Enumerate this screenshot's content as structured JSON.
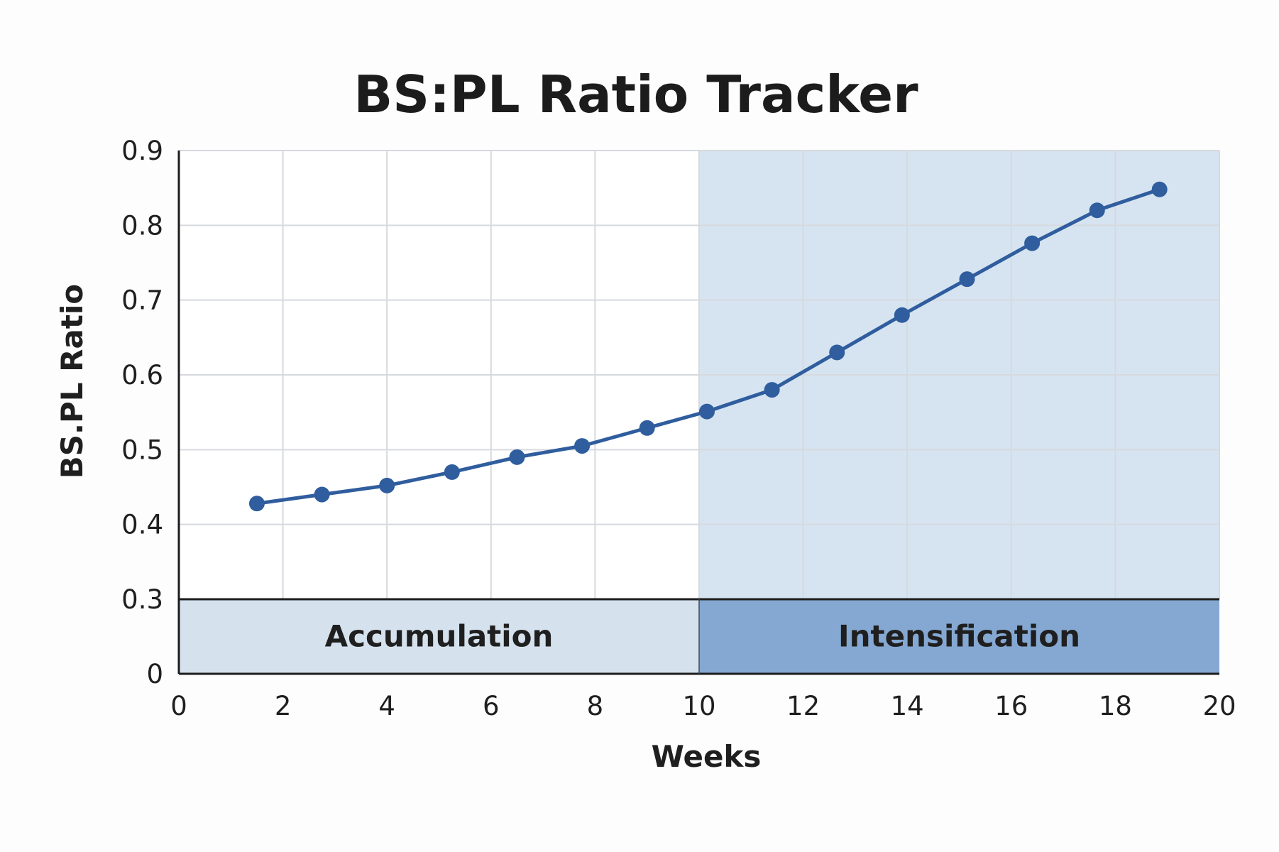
{
  "chart_data": {
    "type": "line",
    "title": "BS:PL Ratio Tracker",
    "xlabel": "Weeks",
    "ylabel": "BS.PL Ratio",
    "xlim": [
      0,
      20
    ],
    "ylim": [
      0,
      0.9
    ],
    "xticks": [
      0,
      2,
      4,
      6,
      8,
      10,
      12,
      14,
      16,
      18,
      20
    ],
    "yticks": [
      0,
      0.3,
      0.4,
      0.5,
      0.6,
      0.7,
      0.8,
      0.9
    ],
    "grid": true,
    "series": [
      {
        "name": "BS:PL Ratio",
        "color": "#2f5d9e",
        "x": [
          1.5,
          2.75,
          4.0,
          5.25,
          6.5,
          7.75,
          9.0,
          10.15,
          11.4,
          12.65,
          13.9,
          15.15,
          16.4,
          17.65,
          18.85
        ],
        "y": [
          0.428,
          0.44,
          0.452,
          0.47,
          0.49,
          0.505,
          0.529,
          0.551,
          0.58,
          0.63,
          0.68,
          0.728,
          0.776,
          0.82,
          0.848
        ]
      }
    ],
    "phases": [
      {
        "label": "Accumulation",
        "x_start": 0,
        "x_end": 10,
        "bar_color": "#d5e2ee",
        "bg_color": "#ffffff"
      },
      {
        "label": "Intensification",
        "x_start": 10,
        "x_end": 20,
        "bar_color": "#85a8d2",
        "bg_color": "#d6e4f1"
      }
    ]
  }
}
